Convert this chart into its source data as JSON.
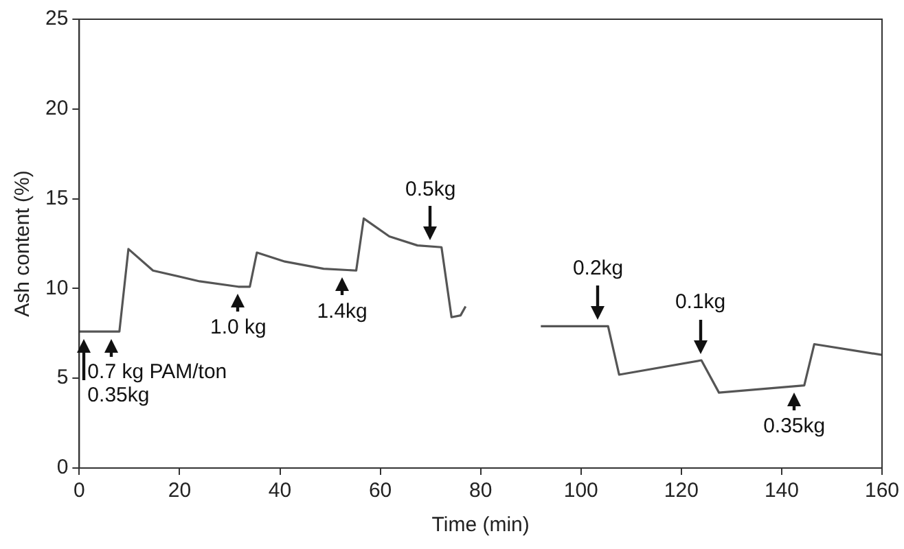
{
  "chart_data": {
    "type": "line",
    "xlabel": "Time (min)",
    "ylabel": "Ash content (%)",
    "x": [
      0,
      8,
      9.8,
      14.7,
      24,
      31.7,
      34,
      35.4,
      41,
      48.7,
      55.2,
      56.7,
      61.8,
      67.4,
      72.2,
      74.2,
      76,
      77,
      85,
      92,
      105.4,
      107.6,
      124,
      127.5,
      144.5,
      146.5,
      160
    ],
    "series": [
      {
        "color": "#555555",
        "values": [
          7.6,
          7.6,
          12.2,
          11.0,
          10.4,
          10.1,
          10.1,
          12.0,
          11.5,
          11.1,
          11.0,
          13.9,
          12.9,
          12.4,
          12.3,
          8.4,
          8.5,
          9.0,
          null,
          7.9,
          7.9,
          5.2,
          6.0,
          4.2,
          4.6,
          6.9,
          6.3
        ]
      }
    ],
    "xlim": [
      0,
      160
    ],
    "xticks": [
      0,
      20,
      40,
      60,
      80,
      100,
      120,
      140,
      160
    ],
    "ylim": [
      0,
      25
    ],
    "yticks": [
      0,
      5,
      10,
      15,
      20,
      25
    ],
    "grid": false,
    "legend": false,
    "marker": "none",
    "line_style": "solid",
    "annotations": [
      {
        "text": "0.35kg",
        "x": 1,
        "y": 7.6
      },
      {
        "text": "0.7 kg PAM/ton",
        "x": 6.5,
        "y": 7.6
      },
      {
        "text": "1.0 kg",
        "x": 31.7,
        "y": 10.1
      },
      {
        "text": "1.4kg",
        "x": 52.4,
        "y": 11.0
      },
      {
        "text": "0.5kg",
        "x": 70,
        "y": 12.3
      },
      {
        "text": "0.2kg",
        "x": 103.4,
        "y": 7.9
      },
      {
        "text": "0.1kg",
        "x": 123.8,
        "y": 6.0
      },
      {
        "text": "0.35kg",
        "x": 142.5,
        "y": 4.6
      }
    ]
  }
}
